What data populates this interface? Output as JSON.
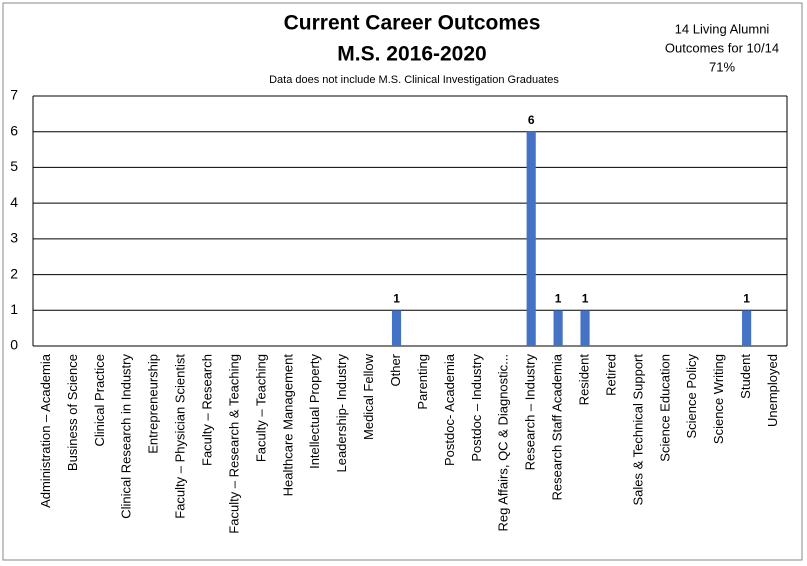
{
  "chart_data": {
    "type": "bar",
    "title": [
      "Current Career Outcomes",
      "M.S. 2016-2020"
    ],
    "subtitle": "Data does not include M.S. Clinical Investigation Graduates",
    "annotation": [
      "14 Living Alumni",
      "Outcomes for 10/14",
      "71%"
    ],
    "categories": [
      "Administration – Academia",
      "Business of Science",
      "Clinical Practice",
      "Clinical Research in Industry",
      "Entrepreneurship",
      "Faculty – Physician Scientist",
      "Faculty – Research",
      "Faculty – Research & Teaching",
      "Faculty – Teaching",
      "Healthcare Management",
      "Intellectual Property",
      "Leadership- Industry",
      "Medical Fellow",
      "Other",
      "Parenting",
      "Postdoc- Academia",
      "Postdoc – Industry",
      "Reg Affairs, QC & Diagnostic...",
      "Research – Industry",
      "Research Staff Academia",
      "Resident",
      "Retired",
      "Sales & Technical Support",
      "Science Education",
      "Science Policy",
      "Science Writing",
      "Student",
      "Unemployed"
    ],
    "values": [
      0,
      0,
      0,
      0,
      0,
      0,
      0,
      0,
      0,
      0,
      0,
      0,
      0,
      1,
      0,
      0,
      0,
      0,
      6,
      1,
      1,
      0,
      0,
      0,
      0,
      0,
      1,
      0
    ],
    "color": "#4472c4",
    "ylim": [
      0,
      7
    ],
    "yticks": [
      0,
      1,
      2,
      3,
      4,
      5,
      6,
      7
    ],
    "grid": true
  }
}
